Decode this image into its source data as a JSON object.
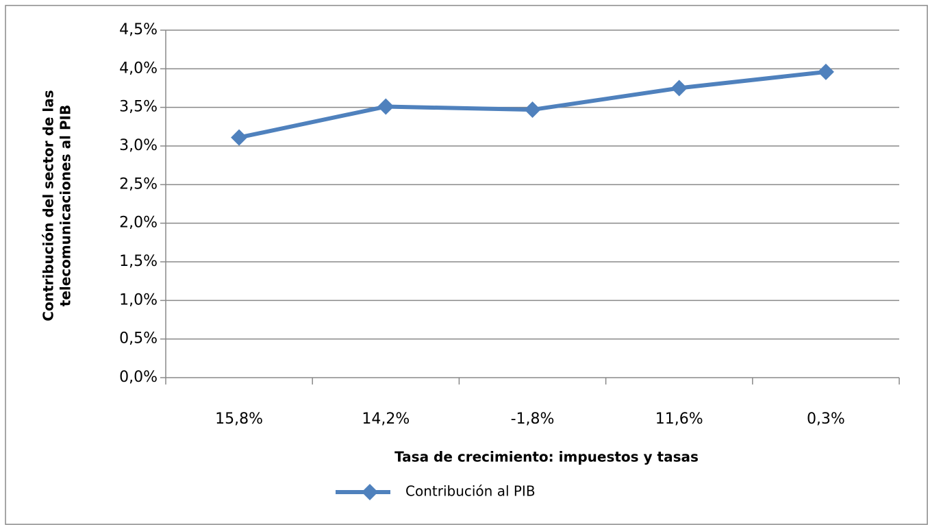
{
  "chart_data": {
    "type": "line",
    "x_label": "Tasa de crecimiento: impuestos y tasas",
    "y_label": [
      "Contribución del sector de las",
      "telecomunicaciones al PIB"
    ],
    "categories": [
      "15,8%",
      "14,2%",
      "-1,8%",
      "11,6%",
      "0,3%"
    ],
    "series": [
      {
        "name": "Contribución al PIB",
        "color": "#4f81bd",
        "values": [
          3.11,
          3.51,
          3.47,
          3.75,
          3.96
        ]
      }
    ],
    "ylim": [
      0,
      4.5
    ],
    "yticks": [
      {
        "value": 0,
        "label": "0,0%"
      },
      {
        "value": 0.5,
        "label": "0,5%"
      },
      {
        "value": 1,
        "label": "1,0%"
      },
      {
        "value": 1.5,
        "label": "1,5%"
      },
      {
        "value": 2,
        "label": "2,0%"
      },
      {
        "value": 2.5,
        "label": "2,5%"
      },
      {
        "value": 3,
        "label": "3,0%"
      },
      {
        "value": 3.5,
        "label": "3,5%"
      },
      {
        "value": 4,
        "label": "4,0%"
      },
      {
        "value": 4.5,
        "label": "4,5%"
      }
    ],
    "grid": true,
    "legend": "bottom"
  }
}
